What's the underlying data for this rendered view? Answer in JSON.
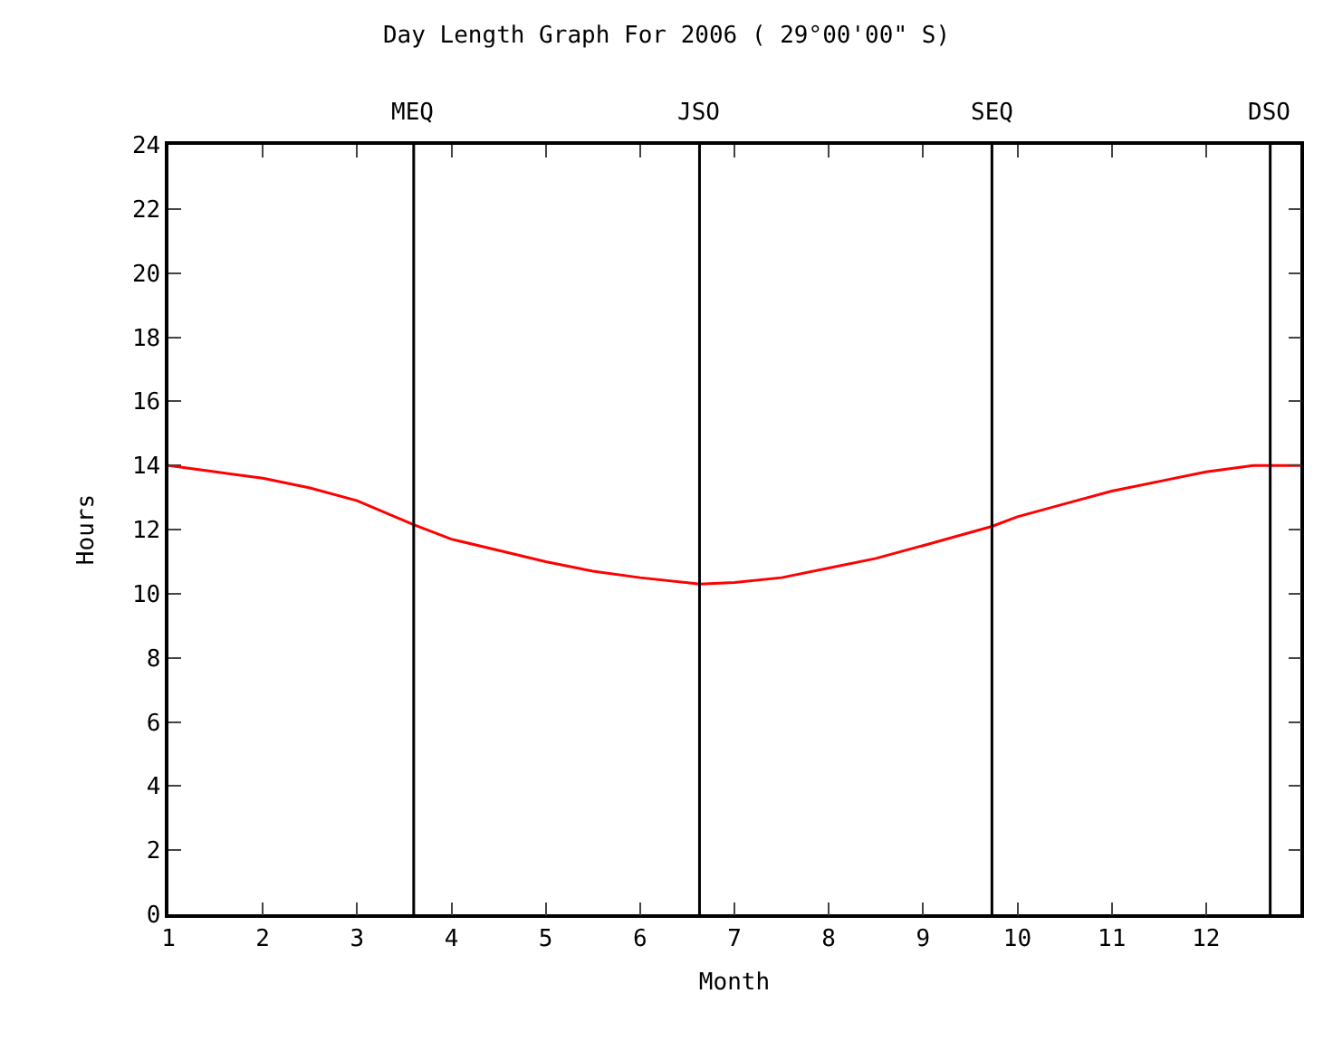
{
  "chart_data": {
    "type": "line",
    "title": "Day Length Graph For 2006 ( 29°00'00\" S)",
    "xlabel": "Month",
    "ylabel": "Hours",
    "x": [
      1,
      1.5,
      2,
      2.5,
      3,
      3.6,
      4,
      4.5,
      5,
      5.5,
      6,
      6.63,
      7,
      7.5,
      8,
      8.5,
      9,
      9.73,
      10,
      10.5,
      11,
      11.5,
      12,
      12.5,
      13
    ],
    "series": [
      {
        "color": "#ff0000",
        "values": [
          14.0,
          13.8,
          13.6,
          13.3,
          12.9,
          12.15,
          11.7,
          11.35,
          11.0,
          10.7,
          10.5,
          10.3,
          10.35,
          10.5,
          10.8,
          11.1,
          11.5,
          12.1,
          12.4,
          12.8,
          13.2,
          13.5,
          13.8,
          14.0,
          14.0
        ]
      }
    ],
    "xlim": [
      1,
      13
    ],
    "xticks": [
      1,
      2,
      3,
      4,
      5,
      6,
      7,
      8,
      9,
      10,
      11,
      12
    ],
    "ylim": [
      0,
      24
    ],
    "yticks": [
      0,
      2,
      4,
      6,
      8,
      10,
      12,
      14,
      16,
      18,
      20,
      22,
      24
    ],
    "ref_lines": [
      {
        "axis": "x",
        "value": 3.6,
        "label": "MEQ",
        "color": "#000000"
      },
      {
        "axis": "x",
        "value": 6.63,
        "label": "JSO",
        "color": "#000000"
      },
      {
        "axis": "x",
        "value": 9.73,
        "label": "SEQ",
        "color": "#000000"
      },
      {
        "axis": "x",
        "value": 12.68,
        "label": "DSO",
        "color": "#000000"
      }
    ],
    "grid": false,
    "marker": "none",
    "line_style": "solid"
  }
}
